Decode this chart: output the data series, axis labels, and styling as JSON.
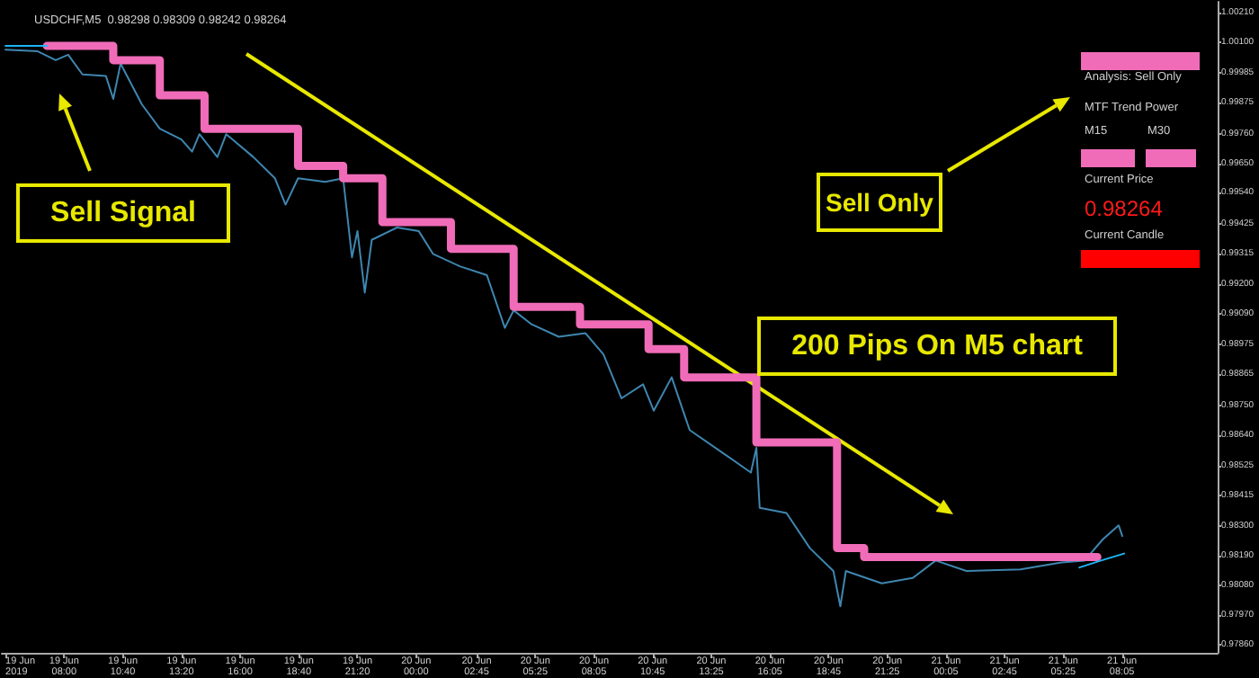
{
  "chart_data": {
    "type": "line",
    "title": "USDCHF,M5  0.98298 0.98309 0.98242 0.98264",
    "xlim": [
      "2019-06-19T05:10",
      "2019-06-21T12:26"
    ],
    "ylim": [
      0.9783,
      1.0025
    ],
    "xticks": [
      {
        "value": "2019-06-19T05:20",
        "label": "19 Jun 2019"
      },
      {
        "value": "2019-06-19T08:00",
        "label": "19 Jun 08:00"
      },
      {
        "value": "2019-06-19T10:40",
        "label": "19 Jun 10:40"
      },
      {
        "value": "2019-06-19T13:20",
        "label": "19 Jun 13:20"
      },
      {
        "value": "2019-06-19T16:00",
        "label": "19 Jun 16:00"
      },
      {
        "value": "2019-06-19T18:40",
        "label": "19 Jun 18:40"
      },
      {
        "value": "2019-06-19T21:20",
        "label": "19 Jun 21:20"
      },
      {
        "value": "2019-06-20T00:00",
        "label": "20 Jun 00:00"
      },
      {
        "value": "2019-06-20T02:45",
        "label": "20 Jun 02:45"
      },
      {
        "value": "2019-06-20T05:25",
        "label": "20 Jun 05:25"
      },
      {
        "value": "2019-06-20T08:05",
        "label": "20 Jun 08:05"
      },
      {
        "value": "2019-06-20T10:45",
        "label": "20 Jun 10:45"
      },
      {
        "value": "2019-06-20T13:25",
        "label": "20 Jun 13:25"
      },
      {
        "value": "2019-06-20T16:05",
        "label": "20 Jun 16:05"
      },
      {
        "value": "2019-06-20T18:45",
        "label": "20 Jun 18:45"
      },
      {
        "value": "2019-06-20T21:25",
        "label": "20 Jun 21:25"
      },
      {
        "value": "2019-06-21T00:05",
        "label": "21 Jun 00:05"
      },
      {
        "value": "2019-06-21T02:45",
        "label": "21 Jun 02:45"
      },
      {
        "value": "2019-06-21T05:25",
        "label": "21 Jun 05:25"
      },
      {
        "value": "2019-06-21T08:05",
        "label": "21 Jun 08:05"
      }
    ],
    "yticks": [
      {
        "value": 1.0021,
        "label": "1.00210"
      },
      {
        "value": 1.001,
        "label": "1.00100"
      },
      0.99985,
      0.99875,
      {
        "value": 0.9976,
        "label": "0.99760"
      },
      {
        "value": 0.9965,
        "label": "0.99650"
      },
      {
        "value": 0.9954,
        "label": "0.99540"
      },
      0.99425,
      0.99315,
      {
        "value": 0.992,
        "label": "0.99200"
      },
      {
        "value": 0.9909,
        "label": "0.99090"
      },
      0.98975,
      0.98865,
      {
        "value": 0.9875,
        "label": "0.98750"
      },
      {
        "value": 0.9864,
        "label": "0.98640"
      },
      0.98525,
      0.98415,
      {
        "value": 0.983,
        "label": "0.98300"
      },
      {
        "value": 0.9819,
        "label": "0.98190"
      },
      {
        "value": 0.9808,
        "label": "0.98080"
      },
      {
        "value": 0.9797,
        "label": "0.97970"
      },
      {
        "value": 0.9786,
        "label": "0.97860"
      }
    ],
    "grid": false,
    "marker": "none",
    "line_style": "solid",
    "series": [
      {
        "color": "#3f86b0",
        "x": [
          "2019-06-19T05:20",
          "2019-06-19T06:48",
          "2019-06-19T07:37",
          "2019-06-19T08:11",
          "2019-06-19T08:50",
          "2019-06-19T09:54",
          "2019-06-19T10:14",
          "2019-06-19T10:34",
          "2019-06-19T11:32",
          "2019-06-19T12:21",
          "2019-06-19T13:20",
          "2019-06-19T13:49",
          "2019-06-19T14:09",
          "2019-06-19T14:58",
          "2019-06-19T15:22",
          "2019-06-19T16:36",
          "2019-06-19T17:35",
          "2019-06-19T18:04",
          "2019-06-19T18:38",
          "2019-06-19T19:52",
          "2019-06-19T20:41",
          "2019-06-19T21:05",
          "2019-06-19T21:20",
          "2019-06-19T21:40",
          "2019-06-19T21:59",
          "2019-06-19T23:08",
          "2019-06-20T00:07",
          "2019-06-20T00:46",
          "2019-06-20T01:59",
          "2019-06-20T03:13",
          "2019-06-20T04:02",
          "2019-06-20T04:26",
          "2019-06-20T05:15",
          "2019-06-20T06:29",
          "2019-06-20T07:42",
          "2019-06-20T08:31",
          "2019-06-20T09:20",
          "2019-06-20T10:19",
          "2019-06-20T10:48",
          "2019-06-20T11:37",
          "2019-06-20T12:26",
          "2019-06-20T14:04",
          "2019-06-20T15:13",
          "2019-06-20T15:28",
          "2019-06-20T15:37",
          "2019-06-20T16:50",
          "2019-06-20T17:54",
          "2019-06-20T18:58",
          "2019-06-20T19:17",
          "2019-06-20T19:32",
          "2019-06-20T21:10",
          "2019-06-20T22:34",
          "2019-06-20T23:37",
          "2019-06-21T01:01",
          "2019-06-21T03:28",
          "2019-06-21T05:20",
          "2019-06-21T06:23",
          "2019-06-21T07:13",
          "2019-06-21T07:56",
          "2019-06-21T08:06"
        ],
        "values": [
          1.00072,
          1.00066,
          1.00033,
          1.00053,
          0.9998,
          0.99974,
          0.99889,
          1.0002,
          0.99869,
          0.99778,
          0.99738,
          0.99693,
          0.99758,
          0.99673,
          0.99758,
          0.99673,
          0.99594,
          0.99496,
          0.99594,
          0.99581,
          0.99594,
          0.993,
          0.99398,
          0.99169,
          0.99365,
          0.99411,
          0.99398,
          0.99313,
          0.99267,
          0.99234,
          0.99038,
          0.99103,
          0.99051,
          0.99005,
          0.99018,
          0.98939,
          0.98776,
          0.98828,
          0.9873,
          0.98854,
          0.98658,
          0.98566,
          0.985,
          0.98592,
          0.98369,
          0.9835,
          0.98219,
          0.98134,
          0.98003,
          0.98134,
          0.98088,
          0.98108,
          0.98173,
          0.98134,
          0.9814,
          0.98166,
          0.98173,
          0.98252,
          0.98304,
          0.98264
        ]
      },
      {
        "type": "step",
        "color": "#f06cb8",
        "x": [
          "2019-06-19T07:13",
          "2019-06-19T10:14",
          "2019-06-19T12:21",
          "2019-06-19T14:23",
          "2019-06-19T18:38",
          "2019-06-19T20:41",
          "2019-06-19T22:28",
          "2019-06-20T01:35",
          "2019-06-20T04:26",
          "2019-06-20T07:27",
          "2019-06-20T10:34",
          "2019-06-20T12:11",
          "2019-06-20T15:28",
          "2019-06-20T19:08",
          "2019-06-20T20:22",
          "2019-06-21T06:58"
        ],
        "values": [
          1.00086,
          1.00033,
          0.99902,
          0.99778,
          0.9964,
          0.99594,
          0.99431,
          0.99332,
          0.99116,
          0.99051,
          0.98959,
          0.98854,
          0.98612,
          0.98219,
          0.98186,
          0.98186
        ]
      },
      {
        "color": "#1db4f5",
        "x": [
          "2019-06-19T05:20",
          "2019-06-19T07:13",
          "2019-06-20T06:00",
          "2019-06-21T06:09",
          "2019-06-21T07:08",
          "2019-06-21T08:11"
        ],
        "values": [
          1.00086,
          1.00086,
          null,
          0.98147,
          0.98173,
          0.98199
        ]
      }
    ],
    "annotations": [
      "Sell Signal",
      "Sell Only",
      "200 Pips On M5 chart",
      "Analysis: Sell Only",
      "MTF Trend Power",
      "M15",
      "M30",
      "Current Price",
      "0.98264",
      "Current Candle"
    ]
  }
}
